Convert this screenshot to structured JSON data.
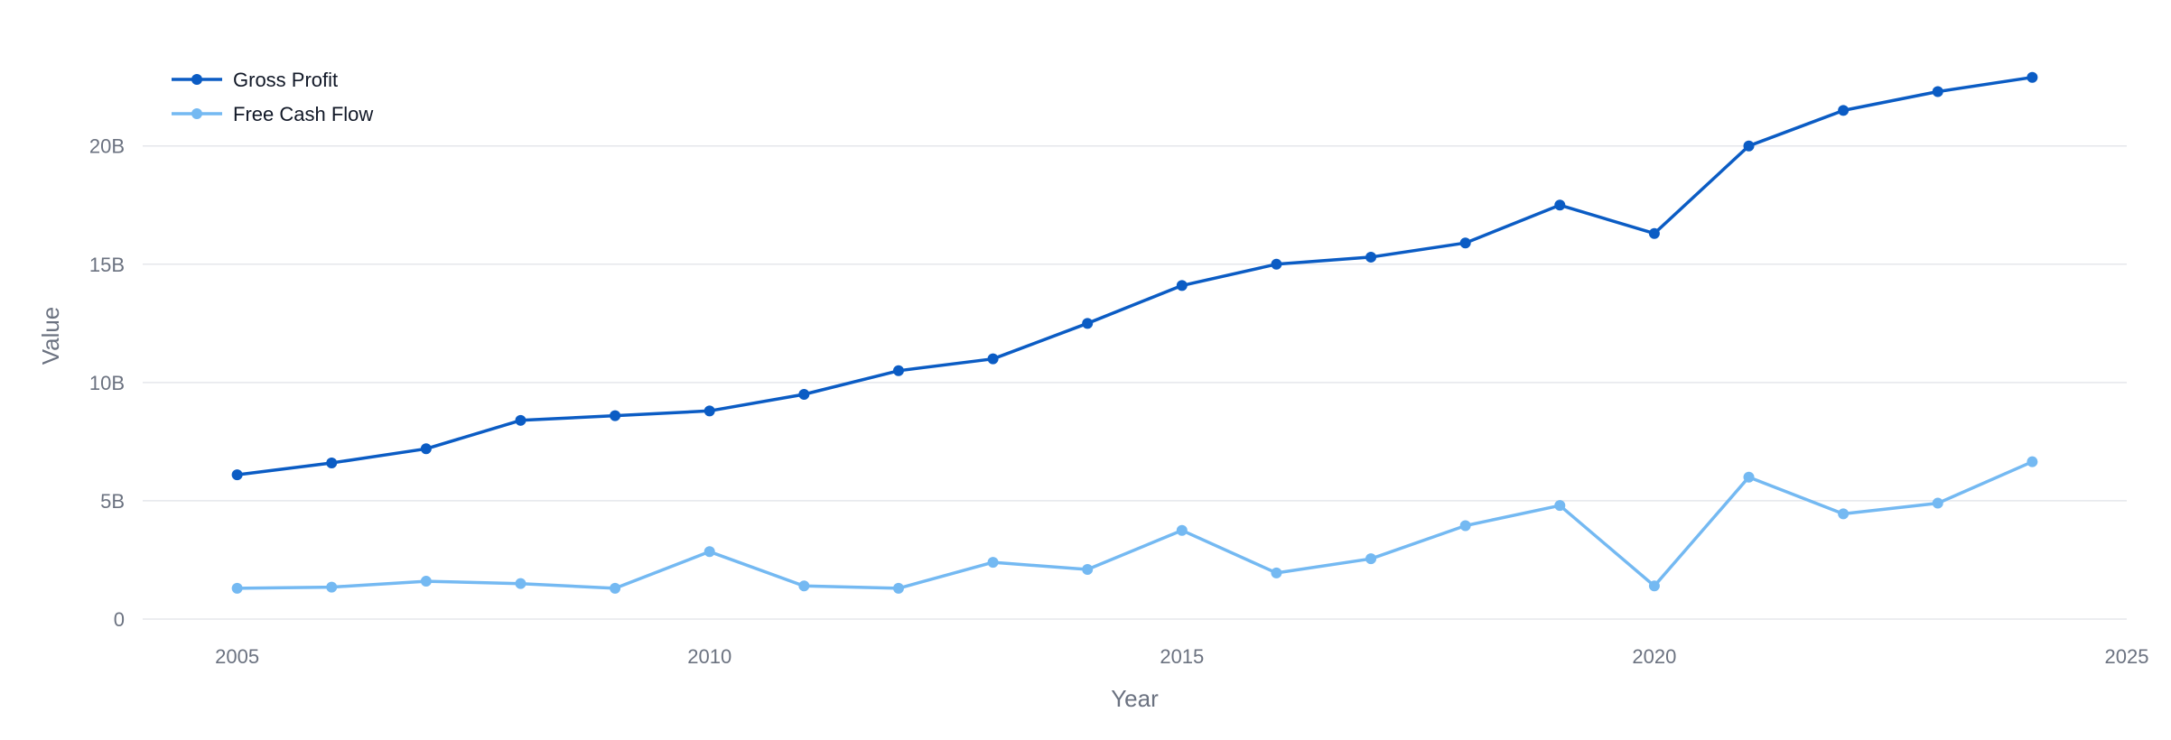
{
  "chart_data": {
    "type": "line",
    "x": [
      2005,
      2006,
      2007,
      2008,
      2009,
      2010,
      2011,
      2012,
      2013,
      2014,
      2015,
      2016,
      2017,
      2018,
      2019,
      2020,
      2021,
      2022,
      2023,
      2024
    ],
    "series": [
      {
        "name": "Gross Profit",
        "color": "#0b5cc4",
        "values": [
          6.1,
          6.6,
          7.2,
          8.4,
          8.6,
          8.8,
          9.5,
          10.5,
          11.0,
          12.5,
          14.1,
          15.0,
          15.3,
          15.9,
          17.5,
          16.3,
          20.0,
          21.5,
          22.3,
          22.9
        ]
      },
      {
        "name": "Free Cash Flow",
        "color": "#74b9f2",
        "values": [
          1.3,
          1.35,
          1.6,
          1.5,
          1.3,
          2.85,
          1.4,
          1.3,
          2.4,
          2.1,
          3.75,
          1.95,
          2.55,
          3.95,
          4.8,
          1.4,
          6.0,
          4.45,
          4.9,
          6.65
        ]
      }
    ],
    "xlabel": "Year",
    "ylabel": "Value",
    "xlim": [
      2004,
      2025
    ],
    "ylim": [
      0,
      23.5
    ],
    "x_ticks": [
      2005,
      2010,
      2015,
      2020,
      2025
    ],
    "x_tick_labels": [
      "2005",
      "2010",
      "2015",
      "2020",
      "2025"
    ],
    "y_ticks": [
      0,
      5,
      10,
      15,
      20
    ],
    "y_tick_labels": [
      "0",
      "5B",
      "10B",
      "15B",
      "20B"
    ],
    "y_unit": "billions",
    "grid": "horizontal",
    "legend_position": "top-left"
  }
}
